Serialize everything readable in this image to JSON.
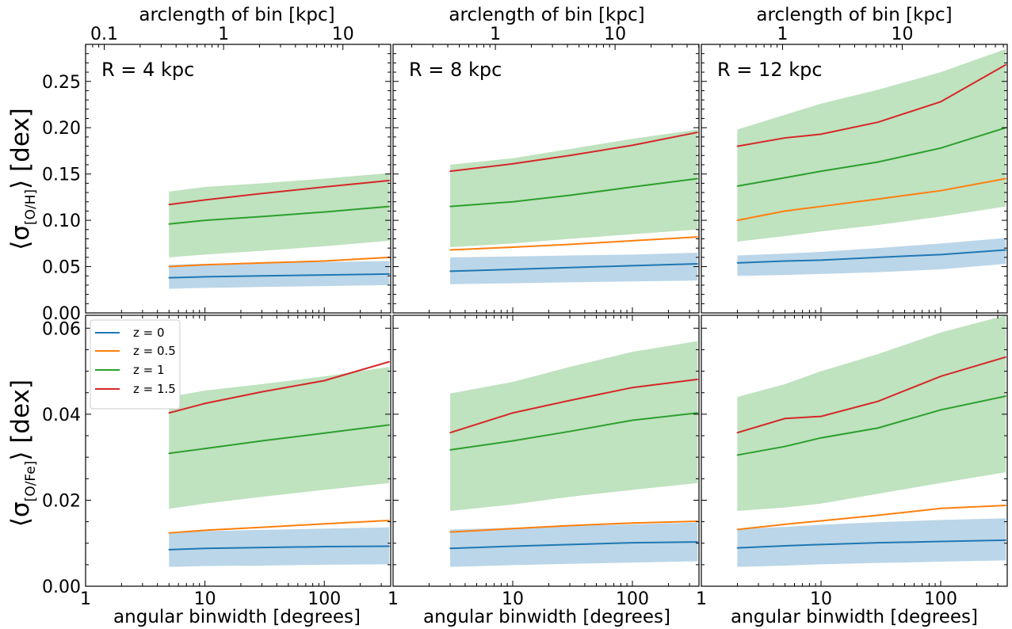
{
  "figure": {
    "top_axis_label": "arclength of bin [kpc]",
    "bottom_axis_label": "angular binwidth [degrees]",
    "ylabel_row1": {
      "pre": "⟨σ",
      "sub": "[O/H]",
      "post": "⟩ [dex]"
    },
    "ylabel_row2": {
      "pre": "⟨σ",
      "sub": "[O/Fe]",
      "post": "⟩ [dex]"
    },
    "colors": {
      "z0": "#1f77b4",
      "z05": "#ff7f0e",
      "z1": "#2ca02c",
      "z15": "#d62728",
      "band_green": "#2ca02c",
      "band_blue": "#1f77b4"
    }
  },
  "legend": {
    "entries": [
      "z = 0",
      "z = 0.5",
      "z = 1",
      "z = 1.5"
    ]
  },
  "chart_data": [
    {
      "type": "line",
      "panel": "R = 4 kpc",
      "row": "[O/H]",
      "xscale": "log",
      "xlim": [
        1,
        360
      ],
      "ylim": [
        0,
        0.29
      ],
      "xticks": [
        "1",
        "10",
        "100"
      ],
      "yticks": [
        "0.00",
        "0.05",
        "0.10",
        "0.15",
        "0.20",
        "0.25"
      ],
      "top_ticks": [
        "0.1",
        "1",
        "10"
      ],
      "x": [
        5,
        10,
        30,
        100,
        350
      ],
      "series": [
        {
          "name": "z = 0",
          "values": [
            0.038,
            0.039,
            0.04,
            0.041,
            0.042
          ],
          "band": [
            [
              0.026,
              0.052
            ],
            [
              0.027,
              0.053
            ],
            [
              0.028,
              0.054
            ],
            [
              0.029,
              0.055
            ],
            [
              0.03,
              0.056
            ]
          ]
        },
        {
          "name": "z = 0.5",
          "values": [
            0.05,
            0.052,
            0.054,
            0.056,
            0.06
          ]
        },
        {
          "name": "z = 1",
          "values": [
            0.096,
            0.1,
            0.104,
            0.109,
            0.115
          ],
          "band": [
            [
              0.06,
              0.131
            ],
            [
              0.063,
              0.136
            ],
            [
              0.067,
              0.14
            ],
            [
              0.072,
              0.145
            ],
            [
              0.078,
              0.151
            ]
          ]
        },
        {
          "name": "z = 1.5",
          "values": [
            0.117,
            0.122,
            0.129,
            0.136,
            0.143
          ]
        }
      ]
    },
    {
      "type": "line",
      "panel": "R = 8 kpc",
      "row": "[O/H]",
      "xscale": "log",
      "xlim": [
        1,
        360
      ],
      "ylim": [
        0,
        0.29
      ],
      "xticks": [
        "1",
        "10",
        "100"
      ],
      "yticks": [],
      "top_ticks": [
        "1",
        "10"
      ],
      "x": [
        3,
        10,
        30,
        100,
        350
      ],
      "series": [
        {
          "name": "z = 0",
          "values": [
            0.045,
            0.047,
            0.049,
            0.051,
            0.053
          ],
          "band": [
            [
              0.031,
              0.06
            ],
            [
              0.032,
              0.061
            ],
            [
              0.033,
              0.062
            ],
            [
              0.034,
              0.063
            ],
            [
              0.035,
              0.065
            ]
          ]
        },
        {
          "name": "z = 0.5",
          "values": [
            0.068,
            0.071,
            0.074,
            0.078,
            0.082
          ]
        },
        {
          "name": "z = 1",
          "values": [
            0.115,
            0.12,
            0.127,
            0.136,
            0.145
          ],
          "band": [
            [
              0.071,
              0.16
            ],
            [
              0.075,
              0.167
            ],
            [
              0.08,
              0.177
            ],
            [
              0.085,
              0.188
            ],
            [
              0.09,
              0.198
            ]
          ]
        },
        {
          "name": "z = 1.5",
          "values": [
            0.153,
            0.161,
            0.17,
            0.181,
            0.195
          ]
        }
      ]
    },
    {
      "type": "line",
      "panel": "R = 12 kpc",
      "row": "[O/H]",
      "xscale": "log",
      "xlim": [
        1,
        360
      ],
      "ylim": [
        0,
        0.29
      ],
      "xticks": [
        "1",
        "10",
        "100"
      ],
      "yticks": [],
      "top_ticks": [
        "1",
        "10"
      ],
      "x": [
        2,
        5,
        10,
        30,
        100,
        350
      ],
      "series": [
        {
          "name": "z = 0",
          "values": [
            0.054,
            0.056,
            0.057,
            0.06,
            0.063,
            0.068
          ],
          "band": [
            [
              0.04,
              0.062
            ],
            [
              0.041,
              0.064
            ],
            [
              0.042,
              0.066
            ],
            [
              0.044,
              0.07
            ],
            [
              0.047,
              0.075
            ],
            [
              0.053,
              0.081
            ]
          ]
        },
        {
          "name": "z = 0.5",
          "values": [
            0.1,
            0.11,
            0.115,
            0.123,
            0.132,
            0.145
          ]
        },
        {
          "name": "z = 1",
          "values": [
            0.137,
            0.146,
            0.153,
            0.163,
            0.178,
            0.2
          ],
          "band": [
            [
              0.077,
              0.198
            ],
            [
              0.083,
              0.214
            ],
            [
              0.088,
              0.226
            ],
            [
              0.095,
              0.241
            ],
            [
              0.104,
              0.26
            ],
            [
              0.115,
              0.285
            ]
          ]
        },
        {
          "name": "z = 1.5",
          "values": [
            0.18,
            0.189,
            0.193,
            0.206,
            0.228,
            0.268
          ]
        }
      ]
    },
    {
      "type": "line",
      "panel": "R = 4 kpc",
      "row": "[O/Fe]",
      "xscale": "log",
      "xlim": [
        1,
        360
      ],
      "ylim": [
        0,
        0.063
      ],
      "xticks": [
        "1",
        "10",
        "100"
      ],
      "yticks": [
        "0.00",
        "0.02",
        "0.04",
        "0.06"
      ],
      "x": [
        5,
        10,
        30,
        100,
        350
      ],
      "series": [
        {
          "name": "z = 0",
          "values": [
            0.0085,
            0.0088,
            0.009,
            0.0092,
            0.0093
          ],
          "band": [
            [
              0.0045,
              0.0125
            ],
            [
              0.0047,
              0.0128
            ],
            [
              0.0048,
              0.0131
            ],
            [
              0.005,
              0.0134
            ],
            [
              0.0051,
              0.0137
            ]
          ]
        },
        {
          "name": "z = 0.5",
          "values": [
            0.0124,
            0.013,
            0.0137,
            0.0145,
            0.0153
          ]
        },
        {
          "name": "z = 1",
          "values": [
            0.0309,
            0.032,
            0.0338,
            0.0356,
            0.0375
          ],
          "band": [
            [
              0.018,
              0.044
            ],
            [
              0.0192,
              0.0455
            ],
            [
              0.0208,
              0.047
            ],
            [
              0.0224,
              0.0488
            ],
            [
              0.024,
              0.051
            ]
          ]
        },
        {
          "name": "z = 1.5",
          "values": [
            0.0403,
            0.0425,
            0.0452,
            0.0478,
            0.0522
          ]
        }
      ]
    },
    {
      "type": "line",
      "panel": "R = 8 kpc",
      "row": "[O/Fe]",
      "xscale": "log",
      "xlim": [
        1,
        360
      ],
      "ylim": [
        0,
        0.063
      ],
      "xticks": [
        "1",
        "10",
        "100"
      ],
      "yticks": [],
      "x": [
        3,
        10,
        30,
        100,
        350
      ],
      "series": [
        {
          "name": "z = 0",
          "values": [
            0.0088,
            0.0093,
            0.0097,
            0.0101,
            0.0103
          ],
          "band": [
            [
              0.0045,
              0.0132
            ],
            [
              0.0049,
              0.0136
            ],
            [
              0.0052,
              0.014
            ],
            [
              0.0055,
              0.0144
            ],
            [
              0.0058,
              0.0148
            ]
          ]
        },
        {
          "name": "z = 0.5",
          "values": [
            0.0126,
            0.0134,
            0.0141,
            0.0147,
            0.0151
          ]
        },
        {
          "name": "z = 1",
          "values": [
            0.0317,
            0.0338,
            0.036,
            0.0386,
            0.0403
          ],
          "band": [
            [
              0.0175,
              0.0448
            ],
            [
              0.019,
              0.0475
            ],
            [
              0.0208,
              0.051
            ],
            [
              0.0224,
              0.0545
            ],
            [
              0.024,
              0.057
            ]
          ]
        },
        {
          "name": "z = 1.5",
          "values": [
            0.0357,
            0.0403,
            0.0432,
            0.0462,
            0.0481
          ]
        }
      ]
    },
    {
      "type": "line",
      "panel": "R = 12 kpc",
      "row": "[O/Fe]",
      "xscale": "log",
      "xlim": [
        1,
        360
      ],
      "ylim": [
        0,
        0.063
      ],
      "xticks": [
        "1",
        "10",
        "100"
      ],
      "yticks": [],
      "x": [
        2,
        5,
        10,
        30,
        100,
        350
      ],
      "series": [
        {
          "name": "z = 0",
          "values": [
            0.0089,
            0.0094,
            0.0097,
            0.0101,
            0.0104,
            0.0107
          ],
          "band": [
            [
              0.0045,
              0.0133
            ],
            [
              0.0048,
              0.0138
            ],
            [
              0.0051,
              0.0143
            ],
            [
              0.0054,
              0.0149
            ],
            [
              0.0057,
              0.0154
            ],
            [
              0.006,
              0.0158
            ]
          ]
        },
        {
          "name": "z = 0.5",
          "values": [
            0.0132,
            0.0144,
            0.0152,
            0.0165,
            0.0181,
            0.0188
          ]
        },
        {
          "name": "z = 1",
          "values": [
            0.0305,
            0.0325,
            0.0345,
            0.0368,
            0.041,
            0.0442
          ],
          "band": [
            [
              0.0175,
              0.044
            ],
            [
              0.0183,
              0.047
            ],
            [
              0.0192,
              0.05
            ],
            [
              0.0215,
              0.054
            ],
            [
              0.024,
              0.059
            ],
            [
              0.0265,
              0.063
            ]
          ]
        },
        {
          "name": "z = 1.5",
          "values": [
            0.0357,
            0.039,
            0.0395,
            0.043,
            0.0488,
            0.0533
          ]
        }
      ]
    }
  ]
}
